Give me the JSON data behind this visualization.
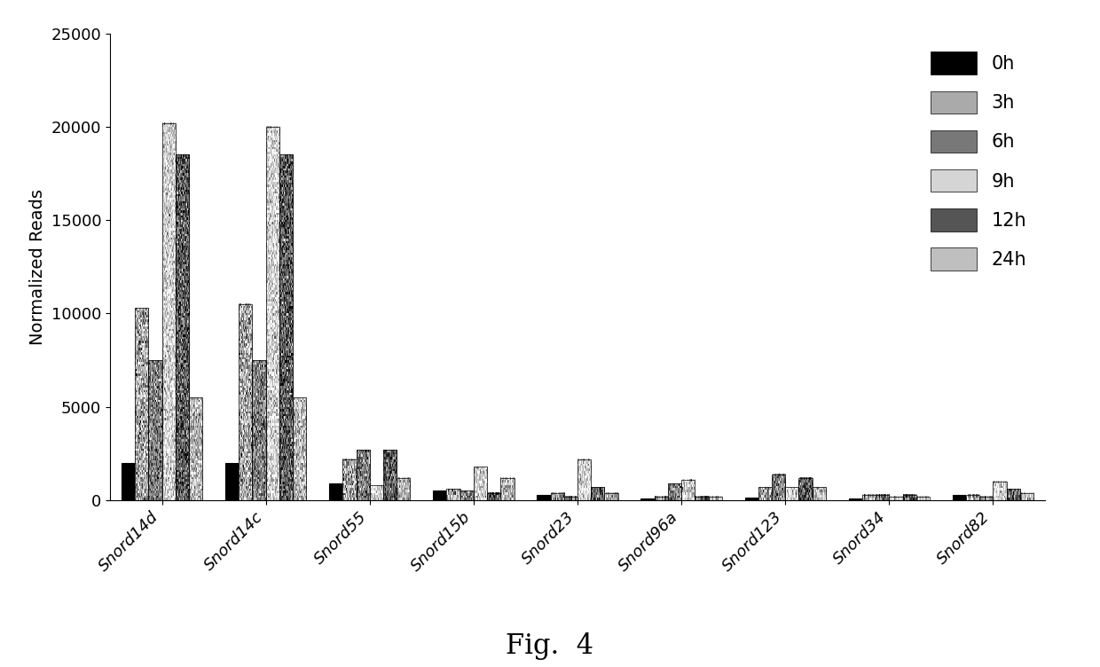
{
  "categories": [
    "Snord14d",
    "Snord14c",
    "Snord55",
    "Snord15b",
    "Snord23",
    "Snord96a",
    "Snord123",
    "Snord34",
    "Snord82"
  ],
  "time_points": [
    "0h",
    "3h",
    "6h",
    "9h",
    "12h",
    "24h"
  ],
  "values": {
    "Snord14d": [
      2000,
      10300,
      7500,
      20200,
      18500,
      5500
    ],
    "Snord14c": [
      2000,
      10500,
      7500,
      20000,
      18500,
      5500
    ],
    "Snord55": [
      900,
      2200,
      2700,
      800,
      2700,
      1200
    ],
    "Snord15b": [
      500,
      600,
      500,
      1800,
      400,
      1200
    ],
    "Snord23": [
      300,
      400,
      200,
      2200,
      700,
      400
    ],
    "Snord96a": [
      100,
      200,
      900,
      1100,
      200,
      200
    ],
    "Snord123": [
      150,
      700,
      1400,
      700,
      1200,
      700
    ],
    "Snord34": [
      100,
      300,
      300,
      200,
      300,
      200
    ],
    "Snord82": [
      300,
      300,
      200,
      1000,
      600,
      400
    ]
  },
  "bar_styles": [
    {
      "color": "#050505",
      "noise_level": 0,
      "label": "0h"
    },
    {
      "color": "#b0b0b0",
      "noise_level": 0.25,
      "label": "3h"
    },
    {
      "color": "#7a7a7a",
      "noise_level": 0.35,
      "label": "6h"
    },
    {
      "color": "#d8d8d8",
      "noise_level": 0.15,
      "label": "9h"
    },
    {
      "color": "#555555",
      "noise_level": 0.4,
      "label": "12h"
    },
    {
      "color": "#c0c0c0",
      "noise_level": 0.2,
      "label": "24h"
    }
  ],
  "ylabel": "Normalized Reads",
  "ylim": [
    0,
    25000
  ],
  "yticks": [
    0,
    5000,
    10000,
    15000,
    20000,
    25000
  ],
  "fig_label": "Fig.  4",
  "fig_label_fontsize": 22,
  "legend_fontsize": 15,
  "tick_fontsize": 13,
  "ylabel_fontsize": 14,
  "bar_width": 0.13
}
